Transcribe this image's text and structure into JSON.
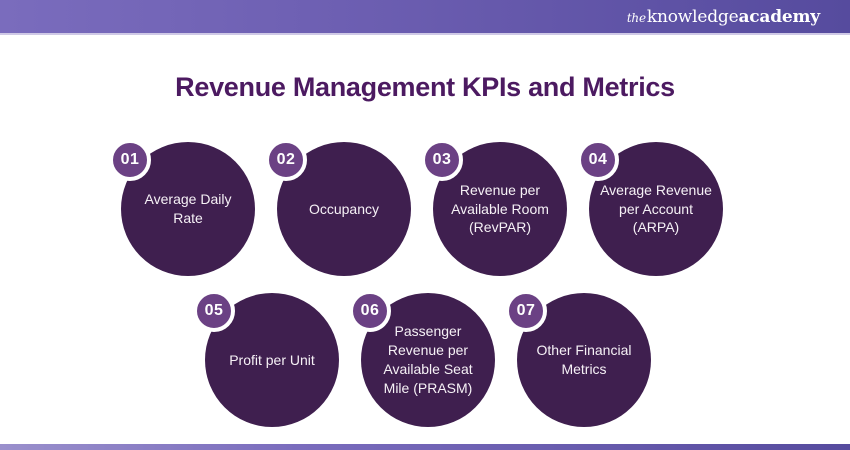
{
  "header": {
    "logo_the": "the",
    "logo_knowledge": "knowledge",
    "logo_academy": "academy"
  },
  "title": "Revenue Management KPIs and Metrics",
  "colors": {
    "topbar_gradient_left": "#7a6cbd",
    "topbar_gradient_right": "#564b9e",
    "title_text": "#4c1a61",
    "circle_fill": "#3f1f4f",
    "badge_fill": "#6b4184",
    "badge_ring": "#ffffff",
    "circle_text": "#f6f1f6"
  },
  "items": [
    {
      "number": "01",
      "label": "Average Daily Rate"
    },
    {
      "number": "02",
      "label": "Occupancy"
    },
    {
      "number": "03",
      "label": "Revenue per Available Room (RevPAR)"
    },
    {
      "number": "04",
      "label": "Average Revenue per Account (ARPA)"
    },
    {
      "number": "05",
      "label": "Profit per Unit"
    },
    {
      "number": "06",
      "label": "Passenger Revenue per Available Seat Mile (PRASM)"
    },
    {
      "number": "07",
      "label": "Other Financial Metrics"
    }
  ]
}
